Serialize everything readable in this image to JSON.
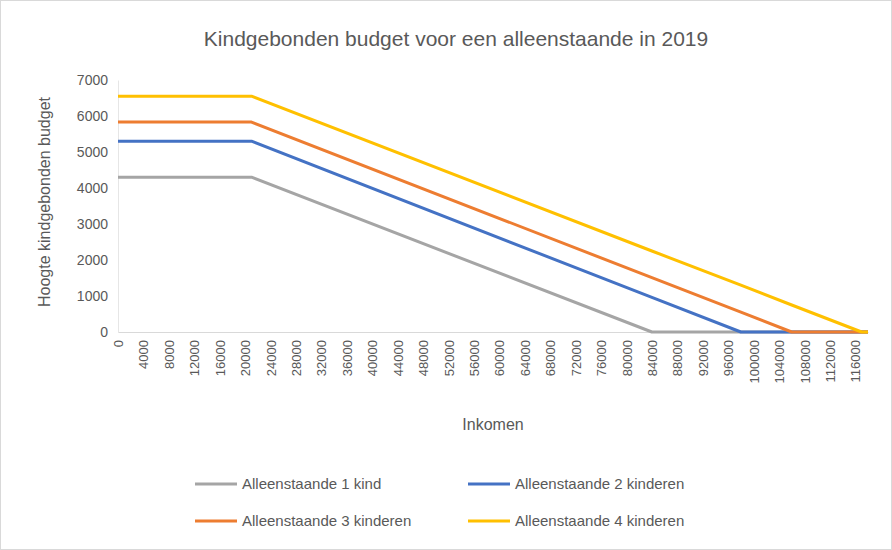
{
  "chart_data": {
    "type": "line",
    "title": "Kindgebonden budget voor een alleenstaande in 2019",
    "x_label": "Inkomen",
    "y_label": "Hoogte kindgebonden budget",
    "x": [
      0,
      21000,
      84000,
      98000,
      106000,
      117000,
      118000
    ],
    "series": [
      {
        "name": "Alleenstaande 1 kind",
        "color": "#a5a5a5",
        "values": [
          4300,
          4300,
          0,
          0,
          0,
          0,
          0
        ]
      },
      {
        "name": "Alleenstaande 2 kinderen",
        "color": "#4472c4",
        "values": [
          5300,
          5300,
          960,
          0,
          0,
          0,
          0
        ]
      },
      {
        "name": "Alleenstaande 3 kinderen",
        "color": "#ed7d31",
        "values": [
          5830,
          5830,
          1510,
          550,
          0,
          0,
          0
        ]
      },
      {
        "name": "Alleenstaande 4 kinderen",
        "color": "#ffc000",
        "values": [
          6550,
          6550,
          2250,
          1300,
          750,
          0,
          0
        ]
      }
    ],
    "xlim": [
      0,
      118000
    ],
    "xticks": [
      0,
      4000,
      8000,
      12000,
      16000,
      20000,
      24000,
      28000,
      32000,
      36000,
      40000,
      44000,
      48000,
      52000,
      56000,
      60000,
      64000,
      68000,
      72000,
      76000,
      80000,
      84000,
      88000,
      92000,
      96000,
      100000,
      104000,
      108000,
      112000,
      116000
    ],
    "ylim": [
      0,
      7000
    ],
    "yticks": [
      0,
      1000,
      2000,
      3000,
      4000,
      5000,
      6000,
      7000
    ],
    "grid": false,
    "legend": "bottom"
  }
}
